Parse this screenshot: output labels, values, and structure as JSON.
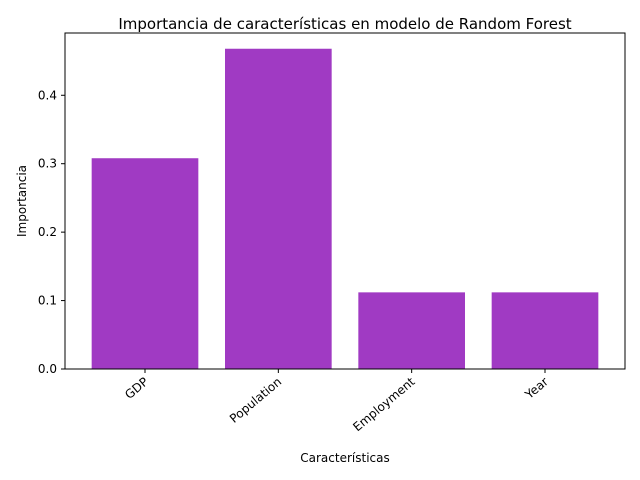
{
  "chart_data": {
    "type": "bar",
    "title": "Importancia de características en modelo de Random Forest",
    "xlabel": "Características",
    "ylabel": "Importancia",
    "categories": [
      "GDP",
      "Population",
      "Employment",
      "Year"
    ],
    "values": [
      0.308,
      0.468,
      0.112,
      0.112
    ],
    "yticks": [
      "0.0",
      "0.1",
      "0.2",
      "0.3",
      "0.4"
    ],
    "ylim": [
      0,
      0.491
    ],
    "grid": false,
    "bar_color": "#a03ac3",
    "xtick_rotation_deg": 40
  }
}
